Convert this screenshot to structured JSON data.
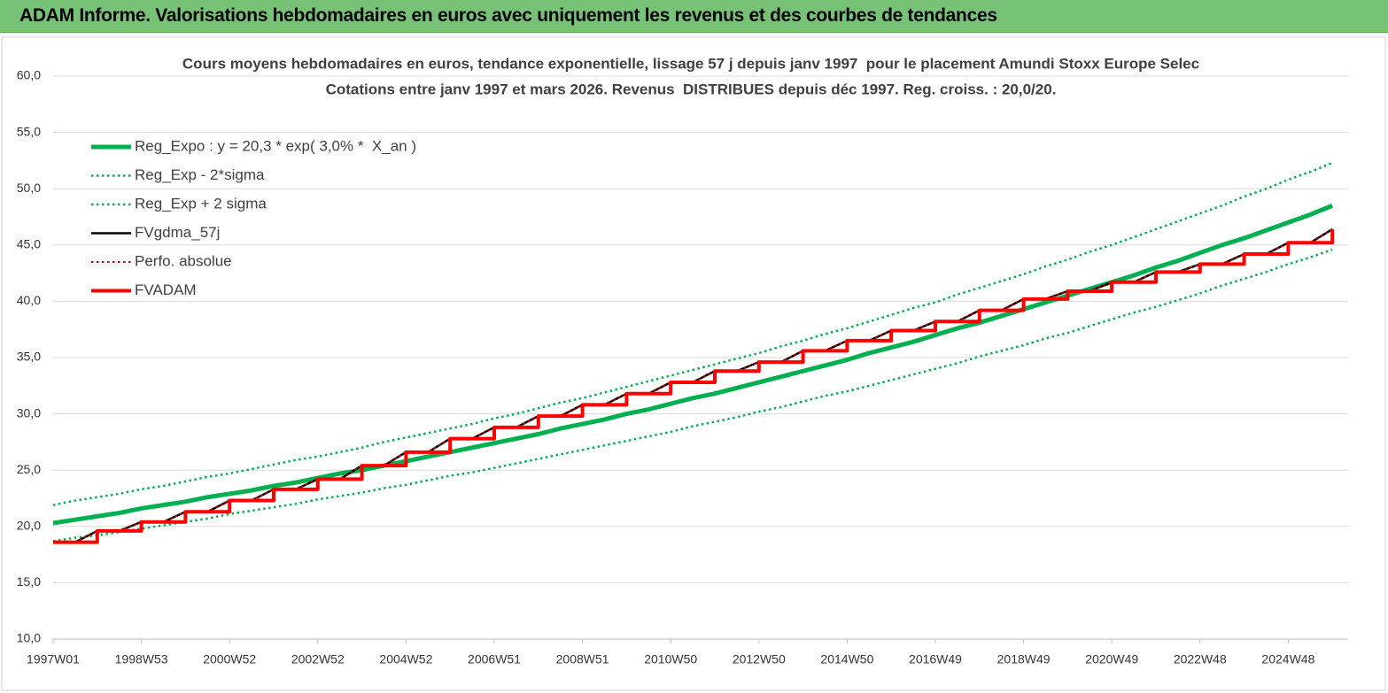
{
  "header": {
    "title": "ADAM Informe. Valorisations hebdomadaires en euros avec uniquement les revenus et des courbes de tendances"
  },
  "chart_data": {
    "type": "line",
    "title": "Cours moyens hebdomadaires en euros, tendance exponentielle, lissage 57 j depuis janv 1997  pour le placement Amundi Stoxx Europe Selec",
    "subtitle": "Cotations entre janv 1997 et mars 2026. Revenus  DISTRIBUES depuis déc 1997. Reg. croiss. : 20,0/20.",
    "categories": [
      "1997W01",
      null,
      null,
      null,
      "1998W53",
      null,
      null,
      null,
      "2000W52",
      null,
      null,
      null,
      "2002W52",
      null,
      null,
      null,
      "2004W52",
      null,
      null,
      null,
      "2006W51",
      null,
      null,
      null,
      "2008W51",
      null,
      null,
      null,
      "2010W50",
      null,
      null,
      null,
      "2012W50",
      null,
      null,
      null,
      "2014W50",
      null,
      null,
      null,
      "2016W49",
      null,
      null,
      null,
      "2018W49",
      null,
      null,
      null,
      "2020W49",
      null,
      null,
      null,
      "2022W48",
      null,
      null,
      null,
      "2024W48",
      null,
      null
    ],
    "ylim": [
      10,
      60
    ],
    "yticks": [
      {
        "value": 10,
        "label": "10,0"
      },
      {
        "value": 15,
        "label": "15,0"
      },
      {
        "value": 20,
        "label": "20,0"
      },
      {
        "value": 25,
        "label": "25,0"
      },
      {
        "value": 30,
        "label": "30,0"
      },
      {
        "value": 35,
        "label": "35,0"
      },
      {
        "value": 40,
        "label": "40,0"
      },
      {
        "value": 45,
        "label": "45,0"
      },
      {
        "value": 50,
        "label": "50,0"
      },
      {
        "value": 55,
        "label": "55,0"
      },
      {
        "value": 60,
        "label": "60,0"
      }
    ],
    "grid": true,
    "legend": "upper left",
    "series": [
      {
        "name": "Reg_Expo : y = 20,3 * exp( 3,0% *  X_an )",
        "color": "#00b050",
        "style": "solid",
        "width": 5,
        "values": [
          20.3,
          20.6,
          20.9,
          21.2,
          21.6,
          21.9,
          22.2,
          22.6,
          22.9,
          23.2,
          23.6,
          23.9,
          24.3,
          24.7,
          25.0,
          25.4,
          25.8,
          26.2,
          26.6,
          27.0,
          27.4,
          27.8,
          28.2,
          28.7,
          29.1,
          29.5,
          30.0,
          30.4,
          30.9,
          31.4,
          31.8,
          32.3,
          32.8,
          33.3,
          33.8,
          34.3,
          34.8,
          35.4,
          35.9,
          36.4,
          37.0,
          37.6,
          38.1,
          38.7,
          39.3,
          39.9,
          40.5,
          41.1,
          41.7,
          42.3,
          43.0,
          43.6,
          44.3,
          45.0,
          45.6,
          46.3,
          47.0,
          47.7,
          48.5
        ]
      },
      {
        "name": "Reg_Exp - 2*sigma",
        "color": "#00b050",
        "style": "dotted",
        "width": 2.5,
        "values": [
          18.7,
          19.0,
          19.2,
          19.5,
          19.8,
          20.1,
          20.4,
          20.7,
          21.1,
          21.4,
          21.7,
          22.0,
          22.4,
          22.7,
          23.0,
          23.4,
          23.7,
          24.1,
          24.5,
          24.8,
          25.2,
          25.6,
          26.0,
          26.4,
          26.8,
          27.2,
          27.6,
          28.0,
          28.4,
          28.9,
          29.3,
          29.7,
          30.2,
          30.6,
          31.1,
          31.6,
          32.0,
          32.5,
          33.0,
          33.5,
          34.0,
          34.5,
          35.1,
          35.6,
          36.1,
          36.7,
          37.2,
          37.8,
          38.4,
          39.0,
          39.5,
          40.1,
          40.7,
          41.4,
          42.0,
          42.6,
          43.3,
          43.9,
          44.6
        ]
      },
      {
        "name": "Reg_Exp + 2 sigma",
        "color": "#00b050",
        "style": "dotted",
        "width": 2.5,
        "values": [
          21.9,
          22.3,
          22.6,
          22.9,
          23.3,
          23.6,
          24.0,
          24.4,
          24.7,
          25.1,
          25.5,
          25.9,
          26.2,
          26.6,
          27.0,
          27.5,
          27.9,
          28.3,
          28.7,
          29.1,
          29.6,
          30.0,
          30.5,
          31.0,
          31.4,
          31.9,
          32.4,
          32.9,
          33.4,
          33.9,
          34.4,
          34.9,
          35.4,
          36.0,
          36.5,
          37.1,
          37.6,
          38.2,
          38.8,
          39.4,
          39.9,
          40.6,
          41.2,
          41.8,
          42.4,
          43.1,
          43.7,
          44.4,
          45.0,
          45.7,
          46.4,
          47.1,
          47.8,
          48.5,
          49.3,
          50.0,
          50.8,
          51.5,
          52.3
        ]
      },
      {
        "name": "FVgdma_57j",
        "color": "#000000",
        "style": "solid",
        "width": 2.5,
        "values": [
          18.6,
          18.6,
          19.6,
          19.6,
          20.4,
          20.4,
          21.3,
          21.3,
          22.3,
          22.3,
          23.3,
          23.3,
          24.2,
          24.2,
          25.4,
          25.4,
          26.6,
          26.6,
          27.8,
          27.8,
          28.8,
          28.8,
          29.8,
          29.8,
          30.8,
          30.8,
          31.8,
          31.8,
          32.8,
          32.8,
          33.8,
          33.8,
          34.6,
          34.6,
          35.6,
          35.6,
          36.5,
          36.5,
          37.4,
          37.4,
          38.2,
          38.2,
          39.2,
          39.2,
          40.2,
          40.2,
          40.9,
          40.9,
          41.7,
          41.7,
          42.6,
          42.6,
          43.3,
          43.3,
          44.2,
          44.2,
          45.2,
          45.2,
          46.4
        ]
      },
      {
        "name": "Perfo. absolue",
        "color": "#c00000",
        "style": "dotted",
        "width": 2,
        "values": [
          18.6,
          18.6,
          19.6,
          19.6,
          20.4,
          20.4,
          21.3,
          21.3,
          22.3,
          22.3,
          23.3,
          23.3,
          24.2,
          24.2,
          25.4,
          25.4,
          26.6,
          26.6,
          27.8,
          27.8,
          28.8,
          28.8,
          29.8,
          29.8,
          30.8,
          30.8,
          31.8,
          31.8,
          32.8,
          32.8,
          33.8,
          33.8,
          34.6,
          34.6,
          35.6,
          35.6,
          36.5,
          36.5,
          37.4,
          37.4,
          38.2,
          38.2,
          39.2,
          39.2,
          40.2,
          40.2,
          40.9,
          40.9,
          41.7,
          41.7,
          42.6,
          42.6,
          43.3,
          43.3,
          44.2,
          44.2,
          45.2,
          45.2,
          46.4
        ]
      },
      {
        "name": "FVADAM",
        "color": "#ff0000",
        "style": "step",
        "width": 4,
        "values": [
          18.6,
          18.6,
          19.6,
          19.6,
          20.4,
          20.4,
          21.3,
          21.3,
          22.3,
          22.3,
          23.3,
          23.3,
          24.2,
          24.2,
          25.4,
          25.4,
          26.6,
          26.6,
          27.8,
          27.8,
          28.8,
          28.8,
          29.8,
          29.8,
          30.8,
          30.8,
          31.8,
          31.8,
          32.8,
          32.8,
          33.8,
          33.8,
          34.6,
          34.6,
          35.6,
          35.6,
          36.5,
          36.5,
          37.4,
          37.4,
          38.2,
          38.2,
          39.2,
          39.2,
          40.2,
          40.2,
          40.9,
          40.9,
          41.7,
          41.7,
          42.6,
          42.6,
          43.3,
          43.3,
          44.2,
          44.2,
          45.2,
          45.2,
          46.4
        ]
      }
    ]
  }
}
